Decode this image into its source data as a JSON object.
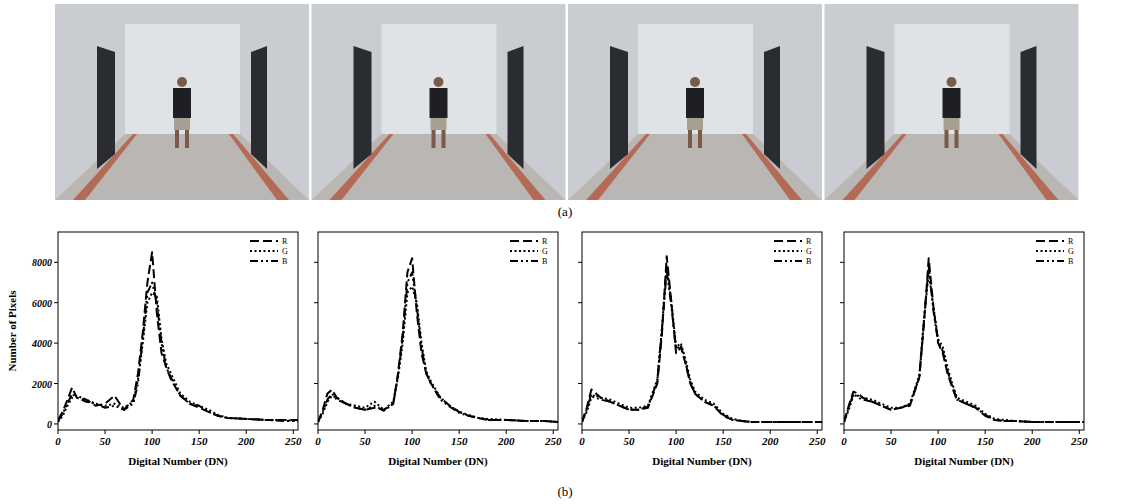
{
  "panel_labels": [
    "(a)",
    "(b)"
  ],
  "chart_data": [
    {
      "type": "line",
      "x_label": "Digital Number (DN)",
      "y_label": "Number of Pixels",
      "x": [
        0,
        5,
        10,
        15,
        20,
        30,
        40,
        50,
        60,
        70,
        80,
        85,
        90,
        95,
        100,
        105,
        110,
        115,
        120,
        130,
        140,
        150,
        160,
        170,
        180,
        200,
        220,
        240,
        255
      ],
      "series": [
        {
          "name": "R",
          "color": "#000000",
          "line_style": "dashed",
          "values": [
            200,
            600,
            1200,
            1800,
            1300,
            1200,
            900,
            1000,
            1400,
            700,
            1200,
            2500,
            4500,
            7000,
            8500,
            5500,
            3500,
            2800,
            2200,
            1400,
            1000,
            800,
            600,
            400,
            300,
            250,
            200,
            200,
            200
          ]
        },
        {
          "name": "G",
          "color": "#000000",
          "line_style": "dotted",
          "values": [
            100,
            400,
            900,
            1300,
            1400,
            1200,
            1000,
            900,
            1000,
            800,
            1100,
            2200,
            4000,
            6000,
            6500,
            6300,
            4200,
            3000,
            2500,
            1500,
            1100,
            900,
            700,
            450,
            300,
            250,
            200,
            200,
            150
          ]
        },
        {
          "name": "B",
          "color": "#000000",
          "line_style": "dashdotdot",
          "values": [
            150,
            500,
            1000,
            1500,
            1300,
            1100,
            1000,
            800,
            900,
            700,
            1000,
            2000,
            4200,
            6500,
            7000,
            6000,
            4000,
            2800,
            2300,
            1400,
            1000,
            900,
            600,
            400,
            300,
            250,
            200,
            150,
            150
          ]
        }
      ],
      "xlim": [
        0,
        255
      ],
      "ylim": [
        -300,
        9500
      ],
      "xticks": [
        0,
        50,
        100,
        150,
        200,
        250
      ],
      "yticks": [
        0,
        2000,
        4000,
        6000,
        8000
      ],
      "legend": "top-right",
      "tick_labels": true
    },
    {
      "type": "line",
      "x_label": "Digital Number (DN)",
      "x": [
        0,
        5,
        10,
        15,
        20,
        30,
        40,
        50,
        60,
        70,
        80,
        85,
        90,
        95,
        100,
        105,
        110,
        115,
        120,
        130,
        140,
        150,
        160,
        170,
        180,
        200,
        220,
        240,
        255
      ],
      "series": [
        {
          "name": "R",
          "color": "#000000",
          "line_style": "dashed",
          "values": [
            100,
            700,
            1500,
            1700,
            1300,
            1000,
            800,
            700,
            800,
            700,
            1000,
            2500,
            4500,
            7500,
            8200,
            5500,
            3500,
            2500,
            2000,
            1300,
            900,
            600,
            400,
            300,
            200,
            200,
            150,
            150,
            100
          ]
        },
        {
          "name": "G",
          "color": "#000000",
          "line_style": "dotted",
          "values": [
            100,
            500,
            1100,
            1400,
            1300,
            1000,
            900,
            800,
            1100,
            700,
            1100,
            2300,
            4000,
            6500,
            6800,
            6000,
            4000,
            2600,
            2100,
            1300,
            900,
            600,
            450,
            300,
            250,
            200,
            150,
            150,
            100
          ]
        },
        {
          "name": "B",
          "color": "#000000",
          "line_style": "dashdotdot",
          "values": [
            100,
            600,
            1200,
            1500,
            1200,
            1000,
            800,
            700,
            900,
            650,
            1000,
            2400,
            4300,
            7000,
            7500,
            5800,
            3800,
            2500,
            2000,
            1200,
            850,
            550,
            400,
            300,
            200,
            200,
            150,
            150,
            100
          ]
        }
      ],
      "xlim": [
        0,
        255
      ],
      "ylim": [
        -300,
        9500
      ],
      "xticks": [
        0,
        50,
        100,
        150,
        200,
        250
      ],
      "yticks": [
        0,
        2000,
        4000,
        6000,
        8000
      ],
      "legend": "top-right",
      "tick_labels": "x"
    },
    {
      "type": "line",
      "x_label": "Digital Number (DN)",
      "x": [
        0,
        5,
        10,
        15,
        20,
        30,
        40,
        50,
        60,
        70,
        80,
        85,
        90,
        95,
        100,
        105,
        110,
        115,
        120,
        130,
        140,
        150,
        160,
        170,
        180,
        200,
        220,
        240,
        255
      ],
      "series": [
        {
          "name": "R",
          "color": "#000000",
          "line_style": "dashed",
          "values": [
            100,
            800,
            1700,
            1500,
            1300,
            1100,
            900,
            700,
            700,
            800,
            2000,
            4500,
            8300,
            6000,
            3500,
            3800,
            3000,
            2000,
            1500,
            1100,
            900,
            400,
            200,
            150,
            100,
            100,
            100,
            100,
            100
          ]
        },
        {
          "name": "G",
          "color": "#000000",
          "line_style": "dotted",
          "values": [
            100,
            600,
            1300,
            1400,
            1300,
            1200,
            1000,
            800,
            800,
            900,
            2200,
            4800,
            7800,
            6000,
            3800,
            4000,
            3200,
            2200,
            1600,
            1200,
            1000,
            500,
            250,
            150,
            100,
            100,
            100,
            100,
            100
          ]
        },
        {
          "name": "B",
          "color": "#000000",
          "line_style": "dashdotdot",
          "values": [
            100,
            700,
            1500,
            1300,
            1200,
            1100,
            900,
            700,
            700,
            850,
            2100,
            4700,
            7600,
            5800,
            3700,
            3900,
            3000,
            2100,
            1500,
            1100,
            900,
            450,
            200,
            150,
            100,
            100,
            100,
            100,
            100
          ]
        }
      ],
      "xlim": [
        0,
        255
      ],
      "ylim": [
        -300,
        9500
      ],
      "xticks": [
        0,
        50,
        100,
        150,
        200,
        250
      ],
      "yticks": [
        0,
        2000,
        4000,
        6000,
        8000
      ],
      "legend": "top-right",
      "tick_labels": "x"
    },
    {
      "type": "line",
      "x_label": "Digital Number (DN)",
      "x": [
        0,
        5,
        10,
        15,
        20,
        30,
        40,
        50,
        60,
        70,
        80,
        85,
        90,
        95,
        100,
        105,
        110,
        115,
        120,
        130,
        140,
        150,
        160,
        170,
        180,
        200,
        220,
        240,
        255
      ],
      "series": [
        {
          "name": "R",
          "color": "#000000",
          "line_style": "dashed",
          "values": [
            100,
            900,
            1600,
            1500,
            1300,
            1100,
            900,
            700,
            800,
            900,
            2300,
            5000,
            8200,
            5800,
            4000,
            3500,
            2500,
            1800,
            1200,
            1000,
            800,
            400,
            200,
            150,
            150,
            100,
            100,
            100,
            100
          ]
        },
        {
          "name": "G",
          "color": "#000000",
          "line_style": "dotted",
          "values": [
            100,
            700,
            1400,
            1400,
            1300,
            1200,
            1000,
            800,
            800,
            1000,
            2400,
            5200,
            7500,
            5800,
            4200,
            3800,
            2800,
            2000,
            1300,
            1100,
            900,
            500,
            250,
            200,
            150,
            100,
            100,
            100,
            100
          ]
        },
        {
          "name": "B",
          "color": "#000000",
          "line_style": "dashdotdot",
          "values": [
            100,
            800,
            1500,
            1300,
            1200,
            1100,
            900,
            700,
            800,
            950,
            2300,
            5100,
            7800,
            5600,
            4100,
            3600,
            2600,
            1900,
            1200,
            1000,
            800,
            450,
            200,
            150,
            150,
            100,
            100,
            100,
            100
          ]
        }
      ],
      "xlim": [
        0,
        255
      ],
      "ylim": [
        -300,
        9500
      ],
      "xticks": [
        0,
        50,
        100,
        150,
        200,
        250
      ],
      "yticks": [
        0,
        2000,
        4000,
        6000,
        8000
      ],
      "legend": "top-right",
      "tick_labels": "x"
    }
  ]
}
